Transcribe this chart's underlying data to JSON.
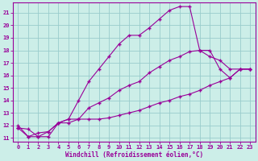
{
  "xlabel": "Windchill (Refroidissement éolien,°C)",
  "bg_color": "#cceee8",
  "grid_color": "#99cccc",
  "line_color": "#990099",
  "xlim": [
    -0.5,
    23.5
  ],
  "ylim": [
    10.7,
    21.8
  ],
  "xticks": [
    0,
    1,
    2,
    3,
    4,
    5,
    6,
    7,
    8,
    9,
    10,
    11,
    12,
    13,
    14,
    15,
    16,
    17,
    18,
    19,
    20,
    21,
    22,
    23
  ],
  "yticks": [
    11,
    12,
    13,
    14,
    15,
    16,
    17,
    18,
    19,
    20,
    21
  ],
  "line1_x": [
    0,
    1,
    2,
    3,
    4,
    5,
    6,
    7,
    8,
    9,
    10,
    11,
    12,
    13,
    14,
    15,
    16,
    17,
    18,
    19,
    20,
    21,
    22,
    23
  ],
  "line1_y": [
    11.8,
    11.7,
    11.1,
    11.1,
    12.2,
    12.2,
    12.5,
    13.4,
    13.8,
    14.2,
    14.8,
    15.2,
    15.5,
    16.2,
    16.7,
    17.2,
    17.5,
    17.9,
    18.0,
    18.0,
    16.5,
    15.8,
    16.5,
    16.5
  ],
  "line2_x": [
    0,
    1,
    2,
    3,
    4,
    5,
    6,
    7,
    8,
    9,
    10,
    11,
    12,
    13,
    14,
    15,
    16,
    17,
    18,
    19,
    20,
    21,
    22,
    23
  ],
  "line2_y": [
    11.8,
    11.1,
    11.4,
    11.5,
    12.2,
    12.5,
    12.5,
    12.5,
    12.5,
    12.6,
    12.8,
    13.0,
    13.2,
    13.5,
    13.8,
    14.0,
    14.3,
    14.5,
    14.8,
    15.2,
    15.5,
    15.8,
    16.5,
    16.5
  ],
  "line3_x": [
    0,
    1,
    2,
    3,
    4,
    5,
    6,
    7,
    8,
    9,
    10,
    11,
    12,
    13,
    14,
    15,
    16,
    17,
    18,
    19,
    20,
    21,
    22,
    23
  ],
  "line3_y": [
    12.0,
    11.1,
    11.1,
    11.5,
    12.2,
    12.5,
    14.0,
    15.5,
    16.5,
    17.5,
    18.5,
    19.2,
    19.2,
    19.8,
    20.5,
    21.2,
    21.5,
    21.5,
    18.0,
    17.5,
    17.2,
    16.5,
    16.5,
    16.5
  ]
}
